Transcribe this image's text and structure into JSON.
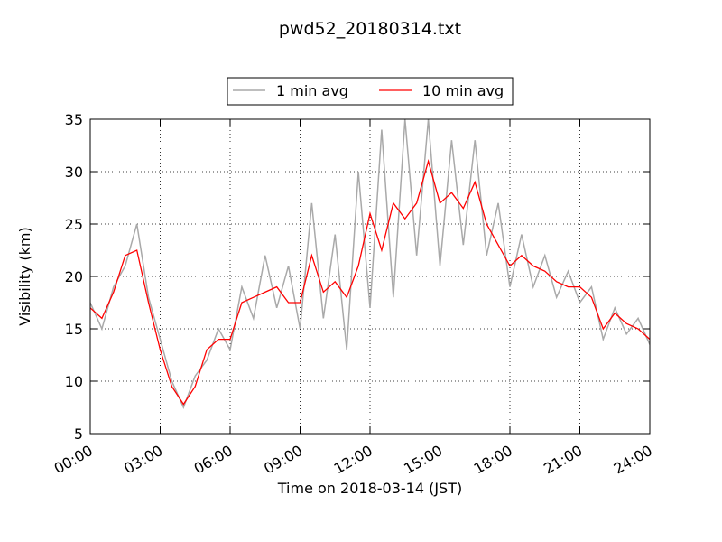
{
  "chart_data": {
    "type": "line",
    "title": "pwd52_20180314.txt",
    "xlabel": "Time on 2018-03-14 (JST)",
    "ylabel": "Visibility (km)",
    "x": [
      0,
      0.5,
      1,
      1.5,
      2,
      2.5,
      3,
      3.5,
      4,
      4.5,
      5,
      5.5,
      6,
      6.5,
      7,
      7.5,
      8,
      8.5,
      9,
      9.5,
      10,
      10.5,
      11,
      11.5,
      12,
      12.5,
      13,
      13.5,
      14,
      14.5,
      15,
      15.5,
      16,
      16.5,
      17,
      17.5,
      18,
      18.5,
      19,
      19.5,
      20,
      20.5,
      21,
      21.5,
      22,
      22.5,
      23,
      23.5,
      24
    ],
    "series": [
      {
        "name": "1 min avg",
        "color": "#a9a9a9",
        "values": [
          17.5,
          15,
          19,
          21,
          25,
          18,
          14,
          10,
          7.5,
          10.5,
          12,
          15,
          13,
          19,
          16,
          22,
          17,
          21,
          15,
          27,
          16,
          24,
          13,
          30,
          17,
          34,
          18,
          35,
          22,
          35,
          21,
          33,
          23,
          33,
          22,
          27,
          19,
          24,
          19,
          22,
          18,
          20.5,
          17.5,
          19,
          14,
          17,
          14.5,
          16,
          13.5
        ]
      },
      {
        "name": "10 min avg",
        "color": "#ff0000",
        "values": [
          17,
          16,
          18.5,
          22,
          22.5,
          17.5,
          13,
          9.5,
          7.8,
          9.5,
          13,
          14,
          14,
          17.5,
          18,
          18.5,
          19,
          17.5,
          17.5,
          22,
          18.5,
          19.5,
          18,
          21,
          26,
          22.5,
          27,
          25.5,
          27,
          31,
          27,
          28,
          26.5,
          29,
          25,
          23,
          21,
          22,
          21,
          20.5,
          19.5,
          19,
          19,
          18,
          15,
          16.5,
          15.5,
          15,
          14
        ]
      }
    ],
    "xlim": [
      0,
      24
    ],
    "xticks": [
      {
        "value": 0,
        "label": "00:00"
      },
      {
        "value": 3,
        "label": "03:00"
      },
      {
        "value": 6,
        "label": "06:00"
      },
      {
        "value": 9,
        "label": "09:00"
      },
      {
        "value": 12,
        "label": "12:00"
      },
      {
        "value": 15,
        "label": "15:00"
      },
      {
        "value": 18,
        "label": "18:00"
      },
      {
        "value": 21,
        "label": "21:00"
      },
      {
        "value": 24,
        "label": "24:00"
      }
    ],
    "ylim": [
      5,
      35
    ],
    "yticks": [
      5,
      10,
      15,
      20,
      25,
      30,
      35
    ],
    "grid": true,
    "legend": "top"
  }
}
